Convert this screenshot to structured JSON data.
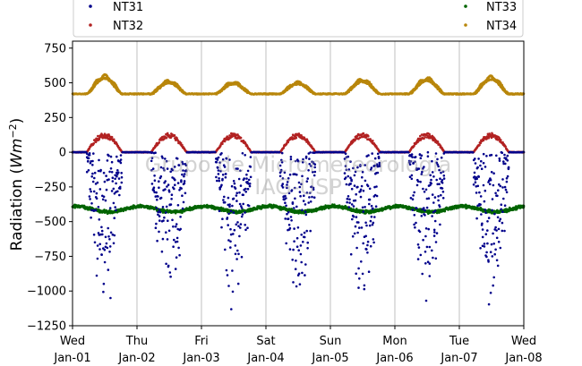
{
  "chart_data": {
    "type": "scatter",
    "ylabel_main": "Radiation (",
    "ylabel_unit": "Wm",
    "ylabel_exp": "−2",
    "ylabel_close": ")",
    "ylim": [
      -1250,
      800
    ],
    "xlim": [
      0,
      7
    ],
    "grid": "vertical",
    "legend_position": "top",
    "watermark": [
      "Grupo de Micrometeorologia",
      "IAG-USP"
    ],
    "y_ticks": [
      {
        "value": 750,
        "label": "750"
      },
      {
        "value": 500,
        "label": "500"
      },
      {
        "value": 250,
        "label": "250"
      },
      {
        "value": 0,
        "label": "0"
      },
      {
        "value": -250,
        "label": "−250"
      },
      {
        "value": -500,
        "label": "−500"
      },
      {
        "value": -750,
        "label": "−750"
      },
      {
        "value": -1000,
        "label": "−1000"
      },
      {
        "value": -1250,
        "label": "−1250"
      }
    ],
    "x_ticks": [
      {
        "value": 0,
        "day": "Wed",
        "date": "Jan-01"
      },
      {
        "value": 1,
        "day": "Thu",
        "date": "Jan-02"
      },
      {
        "value": 2,
        "day": "Fri",
        "date": "Jan-03"
      },
      {
        "value": 3,
        "day": "Sat",
        "date": "Jan-04"
      },
      {
        "value": 4,
        "day": "Sun",
        "date": "Jan-05"
      },
      {
        "value": 5,
        "day": "Mon",
        "date": "Jan-06"
      },
      {
        "value": 6,
        "day": "Tue",
        "date": "Jan-07"
      },
      {
        "value": 7,
        "day": "Wed",
        "date": "Jan-08"
      }
    ],
    "series": [
      {
        "name": "NT31",
        "color": "#00008b",
        "baseline": 0,
        "daytime_min": -1200,
        "pattern": "scattered-negative"
      },
      {
        "name": "NT32",
        "color": "#b22222",
        "baseline": 0,
        "daytime_peak": 120,
        "pattern": "daytime-hump"
      },
      {
        "name": "NT33",
        "color": "#006400",
        "baseline": -410,
        "amplitude": 20,
        "pattern": "near-constant"
      },
      {
        "name": "NT34",
        "color": "#b8860b",
        "baseline": 420,
        "daytime_peak": [
          560,
          520,
          510,
          510,
          530,
          540,
          550
        ],
        "pattern": "daytime-hump"
      }
    ]
  }
}
